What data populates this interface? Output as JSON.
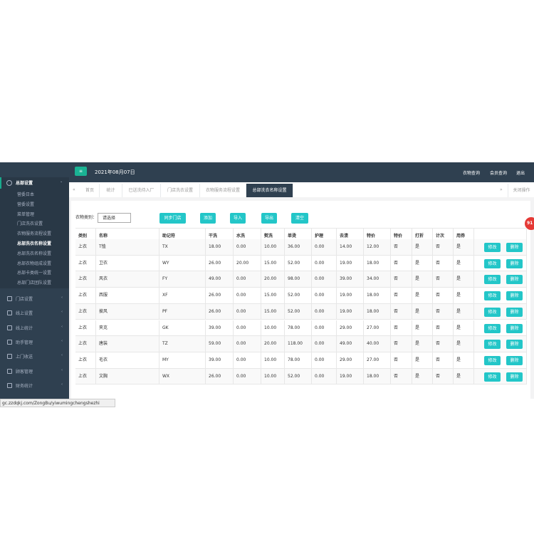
{
  "sidebar": {
    "active_group": "总部设置",
    "sub_items": [
      "营委日本",
      "营委设置",
      "菜单管理",
      "门店洗衣设置",
      "衣物服务流程设置",
      "总部洗衣名称设置",
      "总部洗衣名称设置",
      "总部衣物组成设置",
      "总部卡类统一设置",
      "总部门店团队设置"
    ],
    "groups": [
      "门店设置",
      "线上设置",
      "线上统计",
      "助手管理",
      "上门收送",
      "顾客管理",
      "财务统计"
    ]
  },
  "header": {
    "date": "2021年08月07日",
    "links": [
      "衣物查询",
      "会员查询",
      "退出"
    ]
  },
  "tabs": {
    "items": [
      "首页",
      "统计",
      "已送洗待入厂",
      "门店洗衣设置",
      "衣物服务流程设置",
      "总部洗衣名称设置"
    ],
    "close_ops": "关闭操作"
  },
  "filter": {
    "label": "衣物类别：",
    "select": "请选择",
    "buttons": [
      "同步门店",
      "添加",
      "导入",
      "导出",
      "清空"
    ]
  },
  "table": {
    "columns": [
      "类别",
      "名称",
      "助记符",
      "干洗",
      "水洗",
      "熨洗",
      "单烫",
      "护理",
      "去渍",
      "特价",
      "特价",
      "打折",
      "计次",
      "用券"
    ],
    "rows": [
      [
        "上衣",
        "T恤",
        "TX",
        "18.00",
        "0.00",
        "10.00",
        "36.00",
        "0.00",
        "14.00",
        "12.00",
        "否",
        "是",
        "否",
        "是"
      ],
      [
        "上衣",
        "卫衣",
        "WY",
        "26.00",
        "20.00",
        "15.00",
        "52.00",
        "0.00",
        "19.00",
        "18.00",
        "否",
        "是",
        "否",
        "是"
      ],
      [
        "上衣",
        "风衣",
        "FY",
        "49.00",
        "0.00",
        "20.00",
        "98.00",
        "0.00",
        "39.00",
        "34.00",
        "否",
        "是",
        "否",
        "是"
      ],
      [
        "上衣",
        "西服",
        "XF",
        "26.00",
        "0.00",
        "15.00",
        "52.00",
        "0.00",
        "19.00",
        "18.00",
        "否",
        "是",
        "否",
        "是"
      ],
      [
        "上衣",
        "披风",
        "PF",
        "26.00",
        "0.00",
        "15.00",
        "52.00",
        "0.00",
        "19.00",
        "18.00",
        "否",
        "是",
        "否",
        "是"
      ],
      [
        "上衣",
        "夹克",
        "GK",
        "39.00",
        "0.00",
        "10.00",
        "78.00",
        "0.00",
        "29.00",
        "27.00",
        "否",
        "是",
        "否",
        "是"
      ],
      [
        "上衣",
        "唐装",
        "TZ",
        "59.00",
        "0.00",
        "20.00",
        "118.00",
        "0.00",
        "49.00",
        "40.00",
        "否",
        "是",
        "否",
        "是"
      ],
      [
        "上衣",
        "毛衣",
        "MY",
        "39.00",
        "0.00",
        "10.00",
        "78.00",
        "0.00",
        "29.00",
        "27.00",
        "否",
        "是",
        "否",
        "是"
      ],
      [
        "上衣",
        "文胸",
        "WX",
        "26.00",
        "0.00",
        "10.00",
        "52.00",
        "0.00",
        "19.00",
        "18.00",
        "否",
        "是",
        "否",
        "是"
      ]
    ],
    "actions": [
      "修改",
      "删除"
    ]
  },
  "badge": "91",
  "status_url": "gc.zzdqkj.com/ZongBu/yiwumingchengshezhi"
}
